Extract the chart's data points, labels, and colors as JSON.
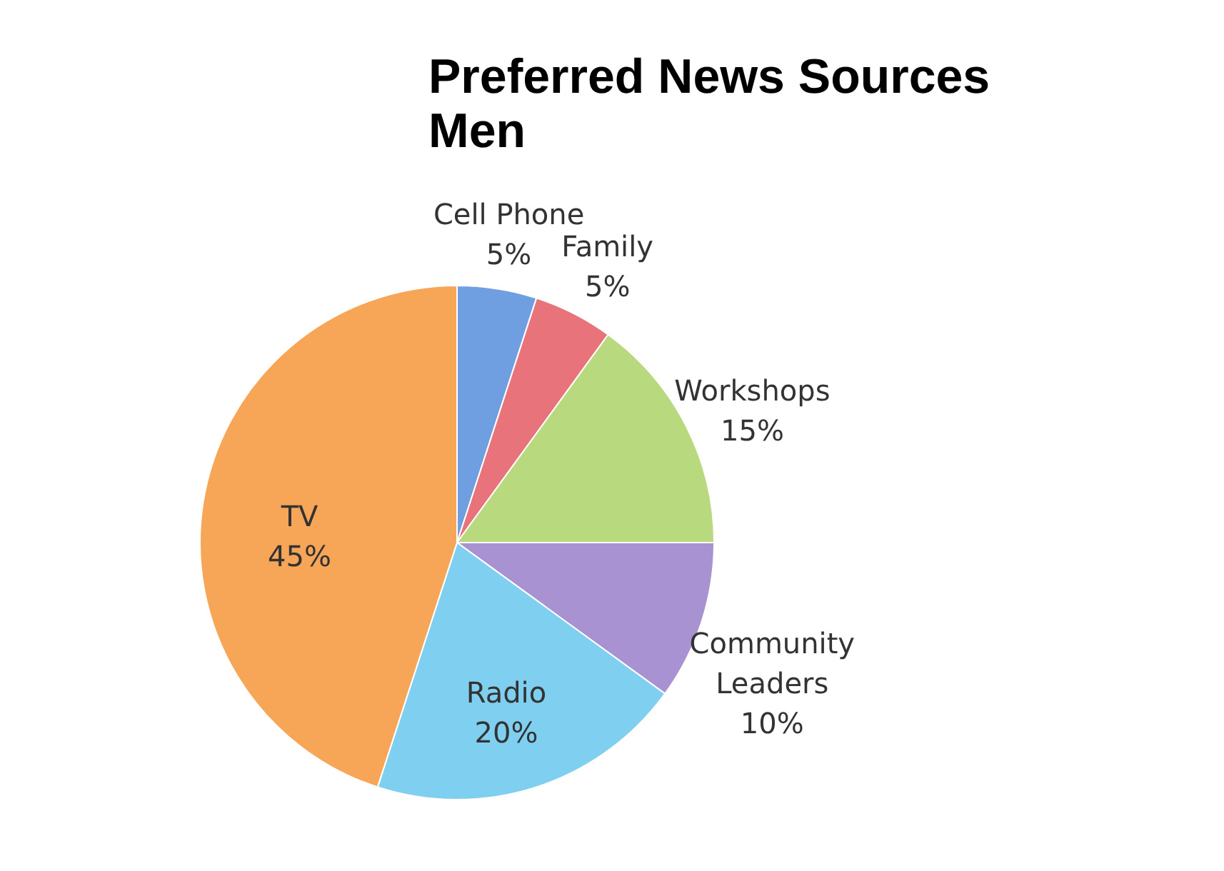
{
  "chart_data": {
    "type": "pie",
    "title": "Preferred News Sources",
    "subtitle": "Men",
    "categories": [
      "Cell Phone",
      "Family",
      "Workshops",
      "Community Leaders",
      "Radio",
      "TV"
    ],
    "values": [
      5,
      5,
      15,
      10,
      20,
      45
    ],
    "colors": [
      "#6f9fe0",
      "#e8737a",
      "#b9d97e",
      "#a892d2",
      "#7fd0f0",
      "#f7a557"
    ],
    "value_labels": [
      "5%",
      "5%",
      "15%",
      "10%",
      "20%",
      "45%"
    ],
    "legend": false
  }
}
